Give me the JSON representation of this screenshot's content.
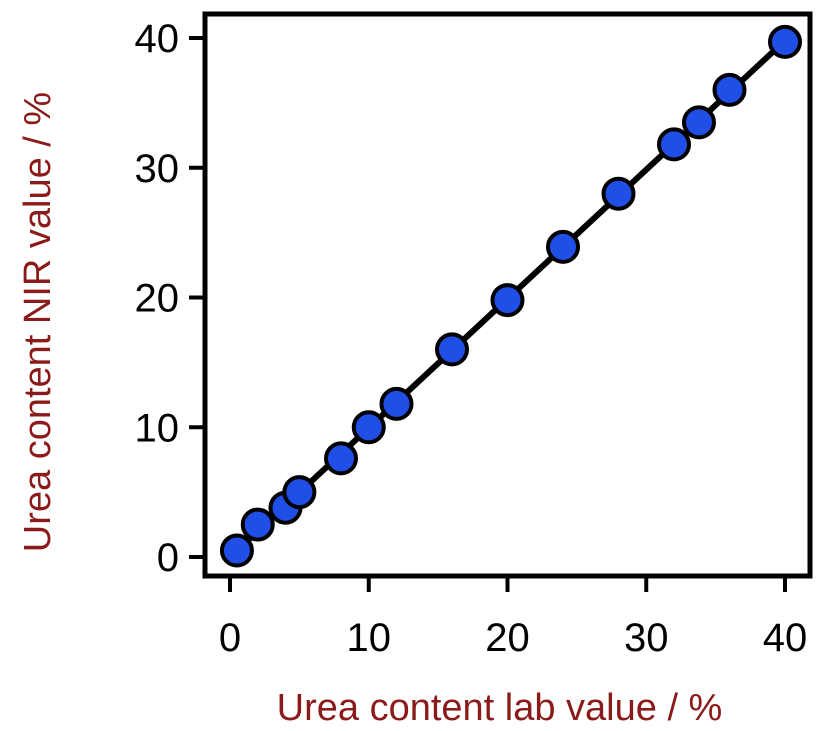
{
  "chart_data": {
    "type": "scatter",
    "xlabel": "Urea content lab value / %",
    "ylabel": "Urea content NIR value / %",
    "xlim": [
      -1,
      41
    ],
    "ylim": [
      -1,
      41
    ],
    "x_ticks": [
      "0",
      "10",
      "20",
      "30",
      "40"
    ],
    "y_ticks": [
      "0",
      "10",
      "20",
      "30",
      "40"
    ],
    "grid": false,
    "fit_line": {
      "x": [
        0.5,
        40
      ],
      "y": [
        0.5,
        39.8
      ]
    },
    "series": [
      {
        "x": [
          0.5,
          2.0,
          4.0,
          5.0,
          8.0,
          10.0,
          12.0,
          16.0,
          20.0,
          24.0,
          28.0,
          32.0,
          33.8,
          36.0,
          40.0
        ],
        "y": [
          0.5,
          2.5,
          3.8,
          5.0,
          7.6,
          10.0,
          11.8,
          16.0,
          19.8,
          23.9,
          28.0,
          31.8,
          33.5,
          36.0,
          39.7
        ]
      }
    ],
    "colors": {
      "marker_fill": "#1f4fe6",
      "marker_edge": "#000000",
      "line": "#000000",
      "axis_title": "#8b1a1a"
    }
  }
}
